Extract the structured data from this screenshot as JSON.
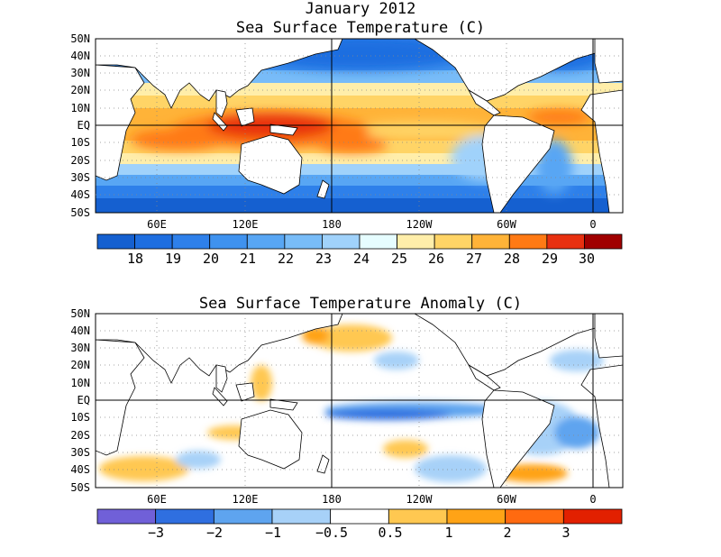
{
  "title1": "January 2012",
  "title2": "Sea Surface Temperature (C)",
  "title3": "Sea Surface Temperature Anomaly (C)",
  "lat_labels": [
    "50N",
    "40N",
    "30N",
    "20N",
    "10N",
    "EQ",
    "10S",
    "20S",
    "30S",
    "40S",
    "50S"
  ],
  "lon_labels": [
    "60E",
    "120E",
    "180",
    "120W",
    "60W",
    "0"
  ],
  "sst_scale": {
    "labels": [
      "18",
      "19",
      "20",
      "21",
      "22",
      "23",
      "24",
      "25",
      "26",
      "27",
      "28",
      "29",
      "30"
    ],
    "colors": [
      "#1560d0",
      "#1e6ee0",
      "#2e80ea",
      "#3f92ef",
      "#58a6f4",
      "#78bcf8",
      "#a0d2fb",
      "#e6fdff",
      "#ffeeaa",
      "#ffd466",
      "#ffb338",
      "#ff7a14",
      "#e83010",
      "#a00000"
    ]
  },
  "anom_scale": {
    "labels": [
      "-3",
      "-2",
      "-1",
      "-0.5",
      "0.5",
      "1",
      "2",
      "3"
    ],
    "colors": [
      "#7060d8",
      "#2f6fe0",
      "#5ea4ef",
      "#a7d1f8",
      "#ffffff",
      "#ffc851",
      "#ffa316",
      "#ff6a10",
      "#e22000"
    ]
  }
}
